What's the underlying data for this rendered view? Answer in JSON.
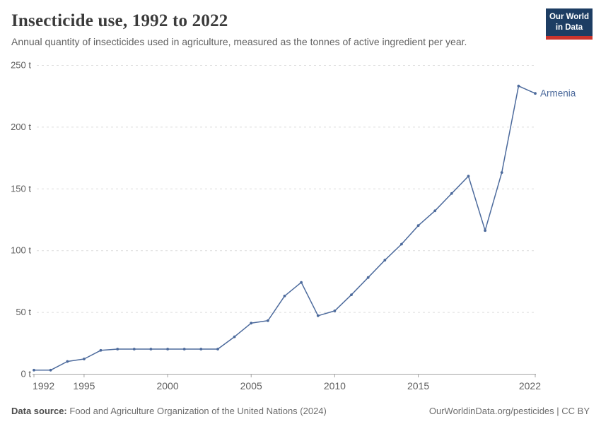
{
  "header": {
    "title": "Insecticide use, 1992 to 2022",
    "subtitle": "Annual quantity of insecticides used in agriculture, measured as the tonnes of active ingredient per year.",
    "logo": {
      "line1": "Our World",
      "line2": "in Data"
    }
  },
  "chart_data": {
    "type": "line",
    "title": "Insecticide use, 1992 to 2022",
    "xlabel": "",
    "ylabel": "tonnes of active ingredient per year",
    "unit_suffix": " t",
    "x": [
      1992,
      1993,
      1994,
      1995,
      1996,
      1997,
      1998,
      1999,
      2000,
      2001,
      2002,
      2003,
      2004,
      2005,
      2006,
      2007,
      2008,
      2009,
      2010,
      2011,
      2012,
      2013,
      2014,
      2015,
      2016,
      2017,
      2018,
      2019,
      2020,
      2021,
      2022
    ],
    "series": [
      {
        "name": "Armenia",
        "values": [
          3,
          3,
          10,
          12,
          19,
          20,
          20,
          20,
          20,
          20,
          20,
          20,
          30,
          41,
          43,
          63,
          74,
          47,
          51,
          64,
          78,
          92,
          105,
          120,
          132,
          146,
          160,
          116,
          163,
          233,
          227
        ]
      }
    ],
    "ylim": [
      0,
      250
    ],
    "y_ticks": [
      0,
      50,
      100,
      150,
      200,
      250
    ],
    "x_ticks": [
      1992,
      1995,
      2000,
      2005,
      2010,
      2015,
      2022
    ],
    "grid": "horizontal-dashed",
    "legend_position": "end-of-line-label",
    "colors": {
      "line": "#4c6a9c",
      "grid": "#dcdcdc",
      "axis": "#a3a3a3",
      "tick_text": "#5f5f5f"
    }
  },
  "footer": {
    "source_label": "Data source:",
    "source_text": "Food and Agriculture Organization of the United Nations (2024)",
    "credit": "OurWorldinData.org/pesticides | CC BY"
  }
}
